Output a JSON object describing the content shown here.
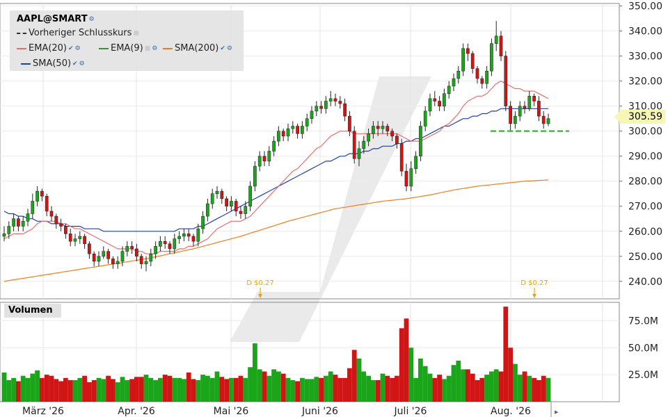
{
  "legend": {
    "symbol": "AAPL@SMART",
    "prev_close": "Vorheriger Schlusskurs",
    "ema20": "EMA(20)",
    "ema9": "EMA(9)",
    "sma200": "SMA(200)",
    "sma50": "SMA(50)"
  },
  "volume_label": "Volumen",
  "last_price": "305.59",
  "dividend_label": "D $0.27",
  "colors": {
    "up": "#1aa51a",
    "down": "#d11414",
    "ema20": "#ef6b6b",
    "ema9": "#2a9a2a",
    "sma200": "#f07d1a",
    "sma50": "#1f3fb0",
    "dividend": "#e6a800",
    "support": "#3cc13c"
  },
  "chart_data": {
    "type": "candlestick",
    "x_labels": [
      "März '26",
      "Apr. '26",
      "Mai '26",
      "Juni '26",
      "Juli '26",
      "Aug. '26"
    ],
    "price_ticks": [
      "350.00",
      "340.00",
      "330.00",
      "320.00",
      "310.00",
      "300.00",
      "290.00",
      "280.00",
      "270.00",
      "260.00",
      "250.00",
      "240.00"
    ],
    "price_range": [
      233,
      351
    ],
    "volume_ticks": [
      "75.0M",
      "50.0M",
      "25.0M"
    ],
    "volume_range": [
      0,
      92
    ],
    "support_level": 300,
    "closes": [
      259,
      262,
      265,
      262,
      264,
      267,
      272,
      276,
      274,
      268,
      266,
      263,
      262,
      259,
      256,
      257,
      258,
      255,
      251,
      248,
      250,
      252,
      249,
      247,
      248,
      252,
      254,
      253,
      250,
      247,
      248,
      251,
      254,
      256,
      255,
      253,
      257,
      258,
      259,
      258,
      256,
      261,
      266,
      271,
      275,
      276,
      273,
      270,
      272,
      268,
      267,
      270,
      278,
      286,
      290,
      288,
      292,
      296,
      300,
      298,
      301,
      302,
      299,
      302,
      305,
      308,
      310,
      309,
      312,
      313,
      312,
      311,
      306,
      300,
      289,
      293,
      296,
      299,
      302,
      301,
      302,
      300,
      298,
      295,
      284,
      278,
      285,
      290,
      302,
      308,
      313,
      312,
      310,
      315,
      318,
      321,
      324,
      333,
      331,
      325,
      321,
      319,
      324,
      335,
      338,
      330,
      310,
      303,
      306,
      310,
      309,
      314,
      312,
      306,
      303,
      305
    ],
    "opens": [
      258,
      259,
      262,
      265,
      262,
      264,
      267,
      272,
      276,
      274,
      268,
      266,
      263,
      262,
      259,
      256,
      257,
      258,
      255,
      251,
      248,
      250,
      252,
      249,
      247,
      248,
      252,
      254,
      253,
      250,
      247,
      248,
      251,
      254,
      256,
      255,
      253,
      257,
      258,
      259,
      258,
      256,
      261,
      266,
      271,
      275,
      276,
      273,
      270,
      272,
      268,
      267,
      270,
      278,
      286,
      290,
      288,
      292,
      296,
      300,
      298,
      301,
      302,
      299,
      302,
      305,
      308,
      310,
      309,
      312,
      313,
      312,
      311,
      306,
      300,
      289,
      293,
      296,
      299,
      302,
      301,
      302,
      300,
      298,
      295,
      284,
      278,
      285,
      290,
      302,
      308,
      313,
      312,
      310,
      315,
      318,
      321,
      324,
      333,
      331,
      325,
      321,
      319,
      324,
      335,
      338,
      330,
      310,
      303,
      306,
      310,
      309,
      314,
      312,
      306,
      303
    ],
    "highs": [
      262,
      264,
      267,
      266,
      266,
      269,
      275,
      278,
      277,
      275,
      270,
      267,
      265,
      263,
      261,
      259,
      260,
      259,
      256,
      252,
      252,
      254,
      253,
      250,
      250,
      254,
      256,
      256,
      255,
      251,
      250,
      253,
      256,
      258,
      258,
      256,
      259,
      260,
      261,
      261,
      259,
      263,
      268,
      273,
      277,
      278,
      277,
      274,
      274,
      273,
      270,
      272,
      280,
      288,
      292,
      292,
      294,
      298,
      302,
      301,
      303,
      304,
      303,
      304,
      307,
      310,
      312,
      312,
      314,
      316,
      315,
      314,
      313,
      308,
      302,
      296,
      298,
      301,
      304,
      304,
      304,
      303,
      301,
      299,
      297,
      287,
      288,
      292,
      304,
      310,
      315,
      316,
      314,
      317,
      320,
      323,
      326,
      335,
      335,
      332,
      326,
      322,
      326,
      337,
      344,
      340,
      332,
      312,
      308,
      312,
      312,
      316,
      315,
      314,
      308,
      307
    ],
    "lows": [
      256,
      257,
      260,
      260,
      260,
      262,
      265,
      270,
      272,
      266,
      264,
      261,
      260,
      257,
      254,
      254,
      255,
      253,
      249,
      246,
      246,
      249,
      247,
      245,
      245,
      246,
      250,
      251,
      248,
      245,
      244,
      246,
      249,
      252,
      253,
      251,
      251,
      255,
      256,
      256,
      254,
      254,
      259,
      264,
      269,
      273,
      271,
      268,
      268,
      266,
      265,
      265,
      268,
      276,
      284,
      286,
      286,
      290,
      294,
      296,
      296,
      299,
      297,
      297,
      300,
      303,
      306,
      307,
      307,
      310,
      310,
      309,
      304,
      298,
      287,
      286,
      291,
      294,
      297,
      298,
      299,
      298,
      296,
      293,
      282,
      276,
      276,
      283,
      288,
      300,
      306,
      310,
      308,
      308,
      313,
      316,
      319,
      322,
      328,
      323,
      319,
      317,
      317,
      322,
      332,
      328,
      308,
      300,
      301,
      304,
      307,
      308,
      310,
      304,
      301,
      302
    ],
    "volumes": [
      27,
      20,
      22,
      19,
      24,
      22,
      26,
      29,
      22,
      25,
      24,
      21,
      19,
      22,
      20,
      20,
      22,
      24,
      18,
      20,
      22,
      21,
      24,
      21,
      18,
      23,
      20,
      21,
      23,
      23,
      25,
      22,
      20,
      22,
      25,
      24,
      22,
      22,
      21,
      27,
      21,
      20,
      25,
      24,
      22,
      28,
      23,
      21,
      22,
      22,
      24,
      22,
      32,
      54,
      30,
      28,
      24,
      30,
      28,
      26,
      22,
      20,
      19,
      22,
      21,
      21,
      23,
      22,
      24,
      28,
      25,
      22,
      22,
      31,
      48,
      40,
      28,
      24,
      20,
      20,
      26,
      24,
      22,
      24,
      68,
      77,
      50,
      22,
      40,
      33,
      26,
      22,
      25,
      21,
      24,
      34,
      38,
      30,
      30,
      26,
      20,
      22,
      25,
      28,
      30,
      28,
      88,
      50,
      35,
      25,
      28,
      24,
      22,
      20,
      24,
      22
    ],
    "ema20": [
      257,
      258,
      259,
      259,
      259,
      260,
      261,
      263,
      264,
      264,
      264,
      264,
      263,
      263,
      262,
      261,
      261,
      260,
      259,
      258,
      257,
      256,
      255,
      254,
      253,
      253,
      253,
      253,
      252,
      252,
      251,
      251,
      251,
      252,
      252,
      252,
      252,
      253,
      253,
      254,
      254,
      255,
      256,
      257,
      259,
      261,
      262,
      263,
      264,
      264,
      264,
      265,
      266,
      268,
      270,
      272,
      274,
      276,
      278,
      280,
      282,
      284,
      285,
      287,
      289,
      291,
      293,
      294,
      296,
      298,
      299,
      300,
      300,
      300,
      299,
      299,
      299,
      299,
      299,
      299,
      299,
      299,
      299,
      299,
      298,
      297,
      296,
      296,
      296,
      297,
      298,
      299,
      300,
      302,
      303,
      305,
      307,
      310,
      312,
      313,
      314,
      314,
      315,
      317,
      319,
      320,
      319,
      318,
      317,
      317,
      316,
      316,
      316,
      315,
      314,
      313
    ],
    "sma50": [
      268,
      267,
      267,
      266,
      266,
      265,
      265,
      264,
      264,
      264,
      263,
      263,
      263,
      262,
      262,
      262,
      262,
      261,
      261,
      261,
      261,
      260,
      260,
      260,
      260,
      260,
      260,
      260,
      260,
      260,
      260,
      260,
      260,
      260,
      260,
      260,
      260,
      261,
      261,
      261,
      261,
      262,
      262,
      263,
      264,
      265,
      266,
      267,
      268,
      269,
      270,
      271,
      272,
      273,
      274,
      275,
      276,
      277,
      278,
      279,
      280,
      281,
      282,
      283,
      284,
      285,
      286,
      287,
      288,
      288,
      289,
      290,
      290,
      291,
      291,
      291,
      292,
      292,
      293,
      293,
      294,
      294,
      294,
      295,
      295,
      296,
      296,
      297,
      297,
      298,
      299,
      300,
      301,
      302,
      302,
      303,
      304,
      305,
      305,
      306,
      306,
      307,
      307,
      308,
      308,
      309,
      309,
      309,
      309,
      309,
      309,
      309,
      309,
      309,
      309,
      309
    ],
    "sma200": [
      240.0,
      240.3,
      240.6,
      240.9,
      241.2,
      241.5,
      241.8,
      242.1,
      242.4,
      242.7,
      243.0,
      243.3,
      243.6,
      243.9,
      244.2,
      244.5,
      244.8,
      245.1,
      245.4,
      245.7,
      246.0,
      246.3,
      246.6,
      246.9,
      247.2,
      247.5,
      247.8,
      248.1,
      248.4,
      248.7,
      249.0,
      249.4,
      249.8,
      250.2,
      250.6,
      251.0,
      251.4,
      251.8,
      252.2,
      252.6,
      253.0,
      253.5,
      254.0,
      254.5,
      255.0,
      255.5,
      256.0,
      256.5,
      257.0,
      257.5,
      258.0,
      258.6,
      259.2,
      259.8,
      260.4,
      261.0,
      261.6,
      262.2,
      262.8,
      263.4,
      264.0,
      264.5,
      265.0,
      265.5,
      266.0,
      266.5,
      267.0,
      267.5,
      268.0,
      268.5,
      269.0,
      269.3,
      269.6,
      269.9,
      270.2,
      270.5,
      270.8,
      271.1,
      271.4,
      271.7,
      272.0,
      272.2,
      272.4,
      272.6,
      272.8,
      273.0,
      273.3,
      273.6,
      273.9,
      274.2,
      274.5,
      274.9,
      275.3,
      275.7,
      276.1,
      276.5,
      276.8,
      277.1,
      277.4,
      277.7,
      278.0,
      278.2,
      278.4,
      278.6,
      278.8,
      279.0,
      279.2,
      279.4,
      279.6,
      279.8,
      280.0,
      280.1,
      280.2,
      280.3,
      280.4,
      280.5
    ]
  }
}
